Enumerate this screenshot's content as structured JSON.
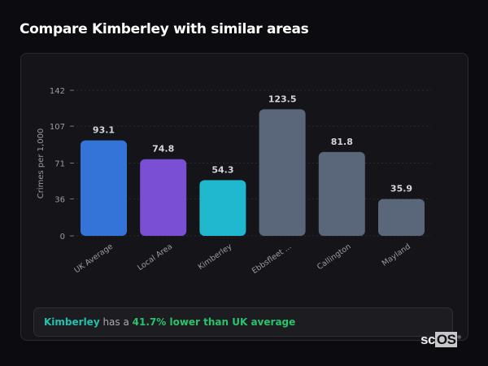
{
  "header": {
    "title": "Compare Kimberley with similar areas"
  },
  "summary": {
    "area": "Kimberley",
    "middle": " has a ",
    "stat": "41.7% lower than UK average"
  },
  "logo": {
    "text": "scOS"
  },
  "chart_data": {
    "type": "bar",
    "title": "",
    "xlabel": "",
    "ylabel": "Crimes per 1,000",
    "ylim": [
      0,
      142
    ],
    "yticks": [
      0,
      36,
      71,
      107,
      142
    ],
    "grid": true,
    "categories": [
      "UK Average",
      "Local Area",
      "Kimberley",
      "Ebbsfleet ...",
      "Callington",
      "Mayland"
    ],
    "values": [
      93.1,
      74.8,
      54.3,
      123.5,
      81.8,
      35.9
    ],
    "data_labels": [
      "93.1",
      "74.8",
      "54.3",
      "123.5",
      "81.8",
      "35.9"
    ],
    "colors": [
      "#3474d8",
      "#7a4fd4",
      "#1fb8cf",
      "#5a677b",
      "#5a677b",
      "#5a677b"
    ]
  }
}
